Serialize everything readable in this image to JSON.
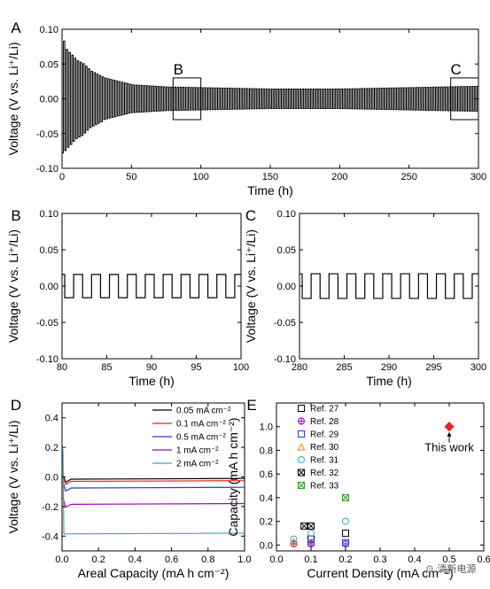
{
  "colors": {
    "black": "#000000",
    "red": "#e8281e",
    "blue": "#2a35d6",
    "purple": "#a000b8",
    "cyan": "#3aa6b8",
    "orange": "#f08a00",
    "green": "#2f9a2f"
  },
  "watermark": "清新电源",
  "chart_data": [
    {
      "panel": "A",
      "type": "line",
      "title": "",
      "xlabel": "Time (h)",
      "ylabel": "Voltage (V vs. Li⁺/Li)",
      "xlim": [
        0,
        300
      ],
      "ylim": [
        -0.1,
        0.1
      ],
      "xticks": [
        "0",
        "50",
        "100",
        "150",
        "200",
        "250",
        "300"
      ],
      "yticks": [
        "-0.10",
        "-0.05",
        "0.00",
        "0.05",
        "0.10"
      ],
      "series": [
        {
          "color": "#000000",
          "description_points": [
            [
              1,
              -0.08
            ],
            [
              3,
              0.068
            ],
            [
              5,
              -0.066
            ],
            [
              10,
              0.055
            ],
            [
              15,
              -0.05
            ],
            [
              20,
              0.04
            ],
            [
              25,
              -0.035
            ],
            [
              30,
              0.03
            ],
            [
              40,
              -0.025
            ],
            [
              50,
              0.02
            ],
            [
              75,
              0.017
            ],
            [
              100,
              0.016
            ],
            [
              150,
              0.014
            ],
            [
              200,
              0.014
            ],
            [
              250,
              0.016
            ],
            [
              300,
              0.018
            ]
          ]
        }
      ],
      "annotations": [
        {
          "label": "B",
          "x_range": [
            80,
            100
          ],
          "y_range": [
            -0.03,
            0.03
          ]
        },
        {
          "label": "C",
          "x_range": [
            280,
            300
          ],
          "y_range": [
            -0.03,
            0.03
          ]
        }
      ]
    },
    {
      "panel": "B",
      "type": "line",
      "xlabel": "Time (h)",
      "ylabel": "Voltage (V vs. Li⁺/Li)",
      "xlim": [
        80,
        100
      ],
      "ylim": [
        -0.1,
        0.1
      ],
      "xticks": [
        "80",
        "85",
        "90",
        "95",
        "100"
      ],
      "yticks": [
        "-0.10",
        "-0.05",
        "0.00",
        "0.05",
        "0.10"
      ],
      "amplitude": 0.016,
      "period_h": 2
    },
    {
      "panel": "C",
      "type": "line",
      "xlabel": "Time (h)",
      "ylabel": "Voltage (V vs. Li⁺/Li)",
      "xlim": [
        280,
        300
      ],
      "ylim": [
        -0.1,
        0.1
      ],
      "xticks": [
        "280",
        "285",
        "290",
        "295",
        "300"
      ],
      "yticks": [
        "-0.10",
        "-0.05",
        "0.00",
        "0.05",
        "0.10"
      ],
      "amplitude": 0.017,
      "period_h": 2
    },
    {
      "panel": "D",
      "type": "line",
      "xlabel": "Areal Capacity (mA h cm⁻²)",
      "ylabel": "Voltage (V vs. Li⁺/Li)",
      "xlim": [
        0,
        1.0
      ],
      "ylim": [
        -0.5,
        0.5
      ],
      "xticks": [
        "0.0",
        "0.2",
        "0.4",
        "0.6",
        "0.8",
        "1.0"
      ],
      "yticks": [
        "-0.4",
        "-0.2",
        "0.0",
        "0.2",
        "0.4"
      ],
      "legend_position": "top-right",
      "series": [
        {
          "name": "0.05 mA cm⁻²",
          "color": "#000000",
          "y_plateau": -0.015
        },
        {
          "name": "0.1 mA cm⁻²",
          "color": "#e8281e",
          "y_plateau": -0.03
        },
        {
          "name": "0.5 mA cm⁻²",
          "color": "#2a35d6",
          "y_plateau": -0.075
        },
        {
          "name": "1 mA cm⁻²",
          "color": "#a000b8",
          "y_plateau": -0.185
        },
        {
          "name": "2 mA cm⁻²",
          "color": "#3aa6b8",
          "y_plateau": -0.385,
          "initial_spike": 0.19
        }
      ]
    },
    {
      "panel": "E",
      "type": "scatter",
      "xlabel": "Current Density (mA cm⁻²)",
      "ylabel": "Capacity (mA h cm⁻²)",
      "xlim": [
        0,
        0.6
      ],
      "ylim": [
        -0.05,
        1.2
      ],
      "xticks": [
        "0.0",
        "0.1",
        "0.2",
        "0.3",
        "0.4",
        "0.5",
        "0.6"
      ],
      "yticks": [
        "0.0",
        "0.2",
        "0.4",
        "0.6",
        "0.8",
        "1.0"
      ],
      "legend_position": "top-left",
      "series": [
        {
          "name": "Ref. 27",
          "marker": "square",
          "color": "#000000",
          "points": [
            [
              0.1,
              0.05
            ],
            [
              0.2,
              0.1
            ]
          ]
        },
        {
          "name": "Ref. 28",
          "marker": "circle-plus",
          "color": "#a000b8",
          "points": [
            [
              0.05,
              0.01
            ],
            [
              0.1,
              0.01
            ],
            [
              0.2,
              0.01
            ]
          ]
        },
        {
          "name": "Ref. 29",
          "marker": "square",
          "color": "#2a35d6",
          "points": [
            [
              0.1,
              0.02
            ],
            [
              0.2,
              0.02
            ]
          ]
        },
        {
          "name": "Ref. 30",
          "marker": "triangle",
          "color": "#f08a00",
          "points": [
            [
              0.05,
              0.03
            ]
          ]
        },
        {
          "name": "Ref. 31",
          "marker": "circle",
          "color": "#3aa6b8",
          "points": [
            [
              0.05,
              0.05
            ],
            [
              0.1,
              0.1
            ],
            [
              0.2,
              0.2
            ]
          ]
        },
        {
          "name": "Ref. 32",
          "marker": "x-square",
          "color": "#000000",
          "points": [
            [
              0.08,
              0.16
            ],
            [
              0.1,
              0.16
            ]
          ]
        },
        {
          "name": "Ref. 33",
          "marker": "x-square",
          "color": "#2f9a2f",
          "points": [
            [
              0.2,
              0.4
            ]
          ]
        },
        {
          "name": "This work",
          "marker": "diamond",
          "color": "#e8281e",
          "points": [
            [
              0.5,
              1.0
            ]
          ]
        }
      ],
      "annotation": "This work"
    }
  ]
}
